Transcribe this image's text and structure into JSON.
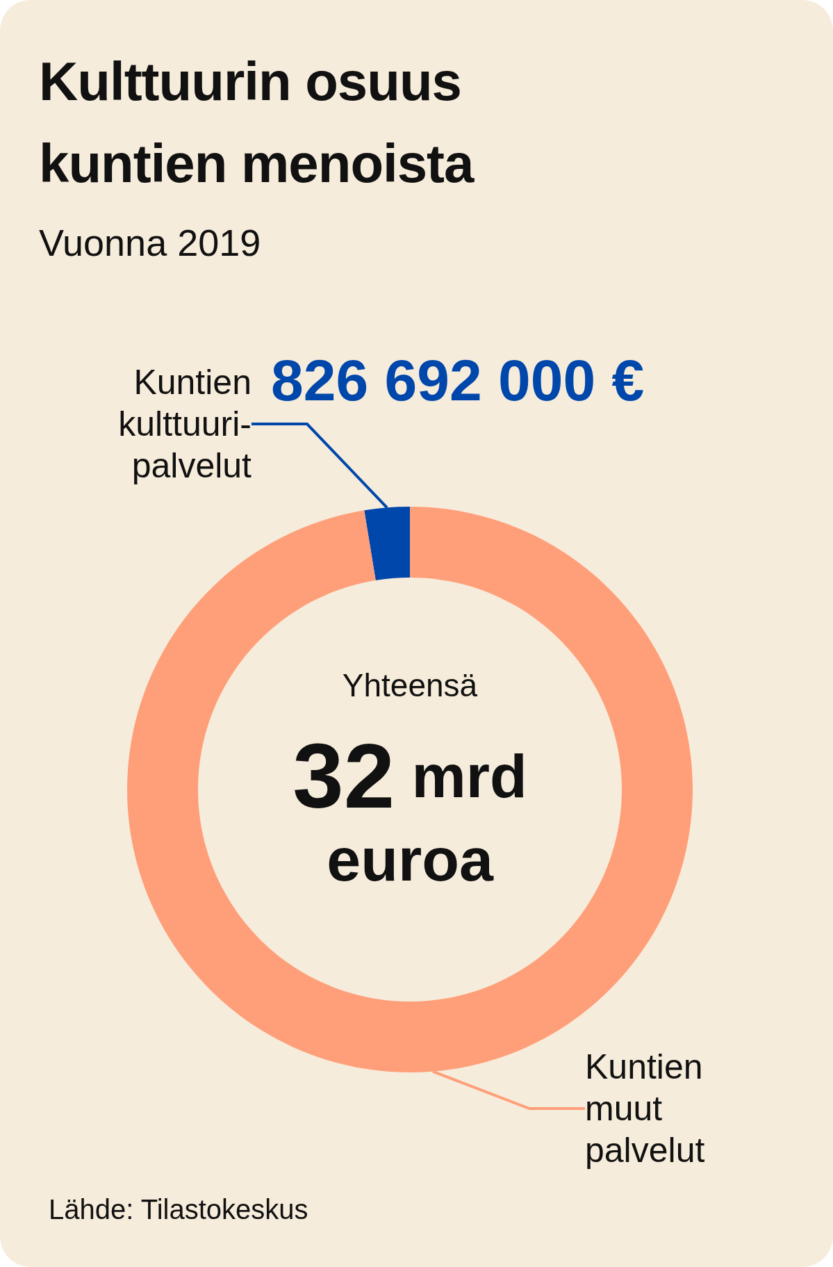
{
  "chart_data": {
    "type": "donut",
    "title": "Kulttuurin osuus kuntien menoista",
    "subtitle": "Vuonna 2019",
    "categories": [
      "Kuntien kulttuuri-palvelut",
      "Kuntien muut palvelut"
    ],
    "values": [
      826692000,
      31173308000
    ],
    "colors": [
      "#0047ab",
      "#ff9f7a"
    ],
    "value_labels": [
      "826 692 000 €",
      null
    ],
    "annotations": [
      "Yhteensä",
      "32 mrd euroa",
      "Lähde: Tilastokeskus"
    ]
  }
}
